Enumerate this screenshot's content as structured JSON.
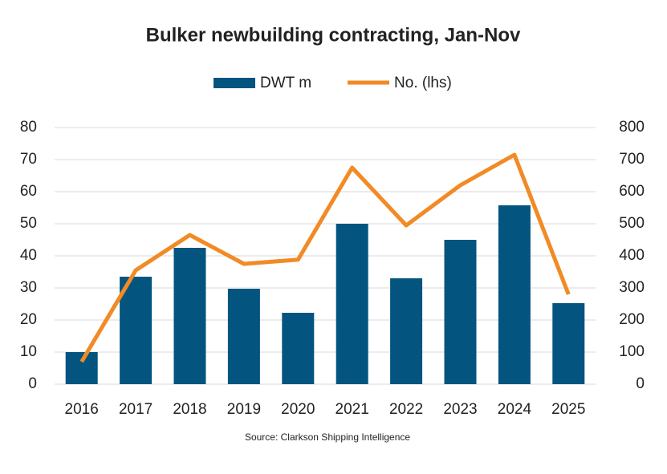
{
  "chart_data": {
    "type": "bar",
    "title": "Bulker newbuilding contracting, Jan-Nov",
    "source": "Source: Clarkson Shipping Intelligence",
    "categories": [
      "2016",
      "2017",
      "2018",
      "2019",
      "2020",
      "2021",
      "2022",
      "2023",
      "2024",
      "2025"
    ],
    "series": [
      {
        "name": "DWT m",
        "type": "bar",
        "color": "#045480",
        "values": [
          10,
          33.5,
          42.5,
          29.75,
          22.25,
          50,
          33,
          45,
          55.75,
          25.25
        ]
      },
      {
        "name": "No. (lhs)",
        "type": "line",
        "axis": "y2",
        "color": "#f28a25",
        "values": [
          70,
          355,
          465,
          375,
          388,
          675,
          495,
          620,
          715,
          280
        ]
      }
    ],
    "ylim": [
      0,
      80
    ],
    "yticks": [
      0,
      10,
      20,
      30,
      40,
      50,
      60,
      70,
      80
    ],
    "y2lim": [
      0,
      800
    ],
    "y2ticks": [
      0,
      100,
      200,
      300,
      400,
      500,
      600,
      700,
      800
    ],
    "grid": true,
    "legend": "top"
  }
}
